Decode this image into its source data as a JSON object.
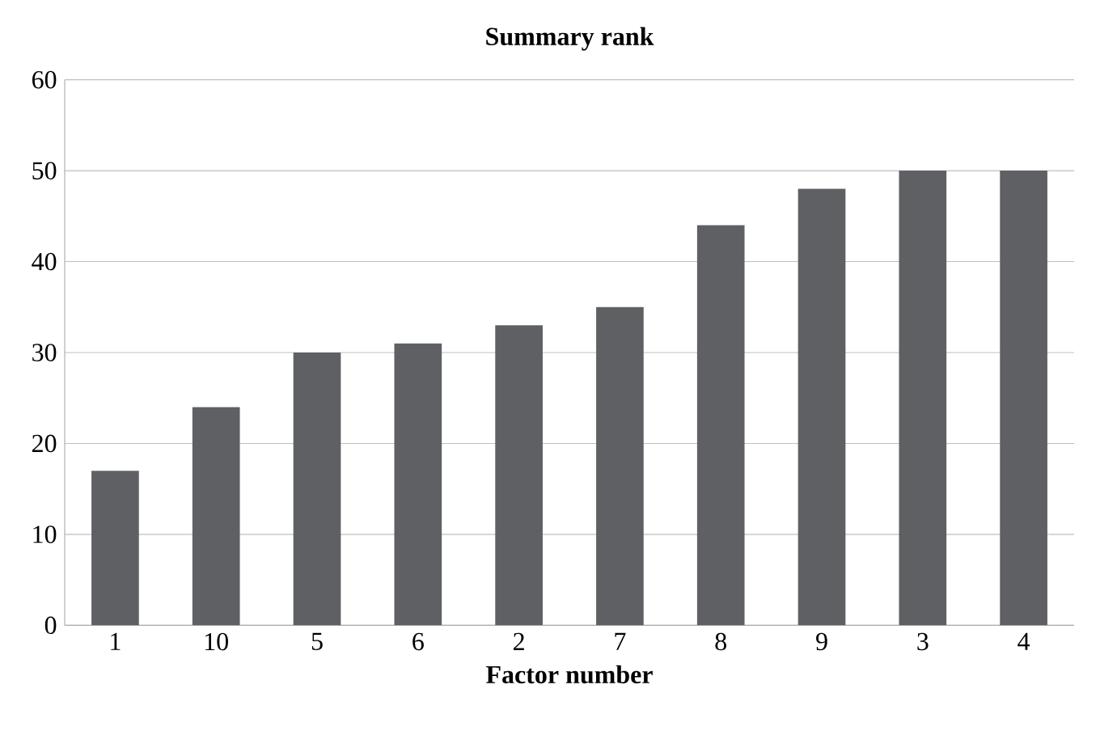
{
  "chart_data": {
    "type": "bar",
    "title": "Summary rank",
    "xlabel": "Factor number",
    "categories": [
      "1",
      "10",
      "5",
      "6",
      "2",
      "7",
      "8",
      "9",
      "3",
      "4"
    ],
    "values": [
      17,
      24,
      30,
      31,
      33,
      35,
      44,
      48,
      50,
      50
    ],
    "color": "#5f6064",
    "ylim": [
      0,
      60
    ],
    "yticks": [
      0,
      10,
      20,
      30,
      40,
      50,
      60
    ],
    "grid": "y"
  }
}
